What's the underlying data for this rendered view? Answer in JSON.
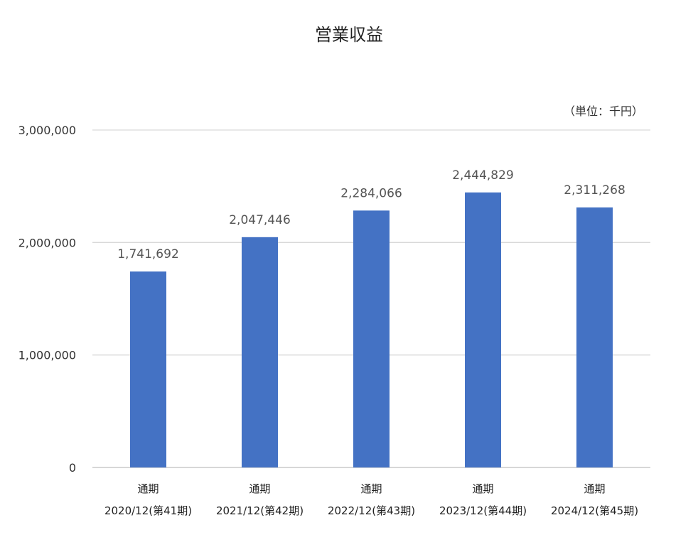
{
  "chart_data": {
    "type": "bar",
    "title": "営業収益",
    "unit_note": "（単位：千円）",
    "categories": [
      {
        "line1": "通期",
        "line2": "2020/12(第41期)"
      },
      {
        "line1": "通期",
        "line2": "2021/12(第42期)"
      },
      {
        "line1": "通期",
        "line2": "2022/12(第43期)"
      },
      {
        "line1": "通期",
        "line2": "2023/12(第44期)"
      },
      {
        "line1": "通期",
        "line2": "2024/12(第45期)"
      }
    ],
    "values": [
      1741692,
      2047446,
      2284066,
      2444829,
      2311268
    ],
    "value_labels": [
      "1,741,692",
      "2,047,446",
      "2,284,066",
      "2,444,829",
      "2,311,268"
    ],
    "ylim": [
      0,
      3000000
    ],
    "yticks": [
      {
        "value": 0,
        "label": "0"
      },
      {
        "value": 1000000,
        "label": "1,000,000"
      },
      {
        "value": 2000000,
        "label": "2,000,000"
      },
      {
        "value": 3000000,
        "label": "3,000,000"
      }
    ],
    "bar_color": "#4472c4",
    "grid": true,
    "legend": "none"
  }
}
